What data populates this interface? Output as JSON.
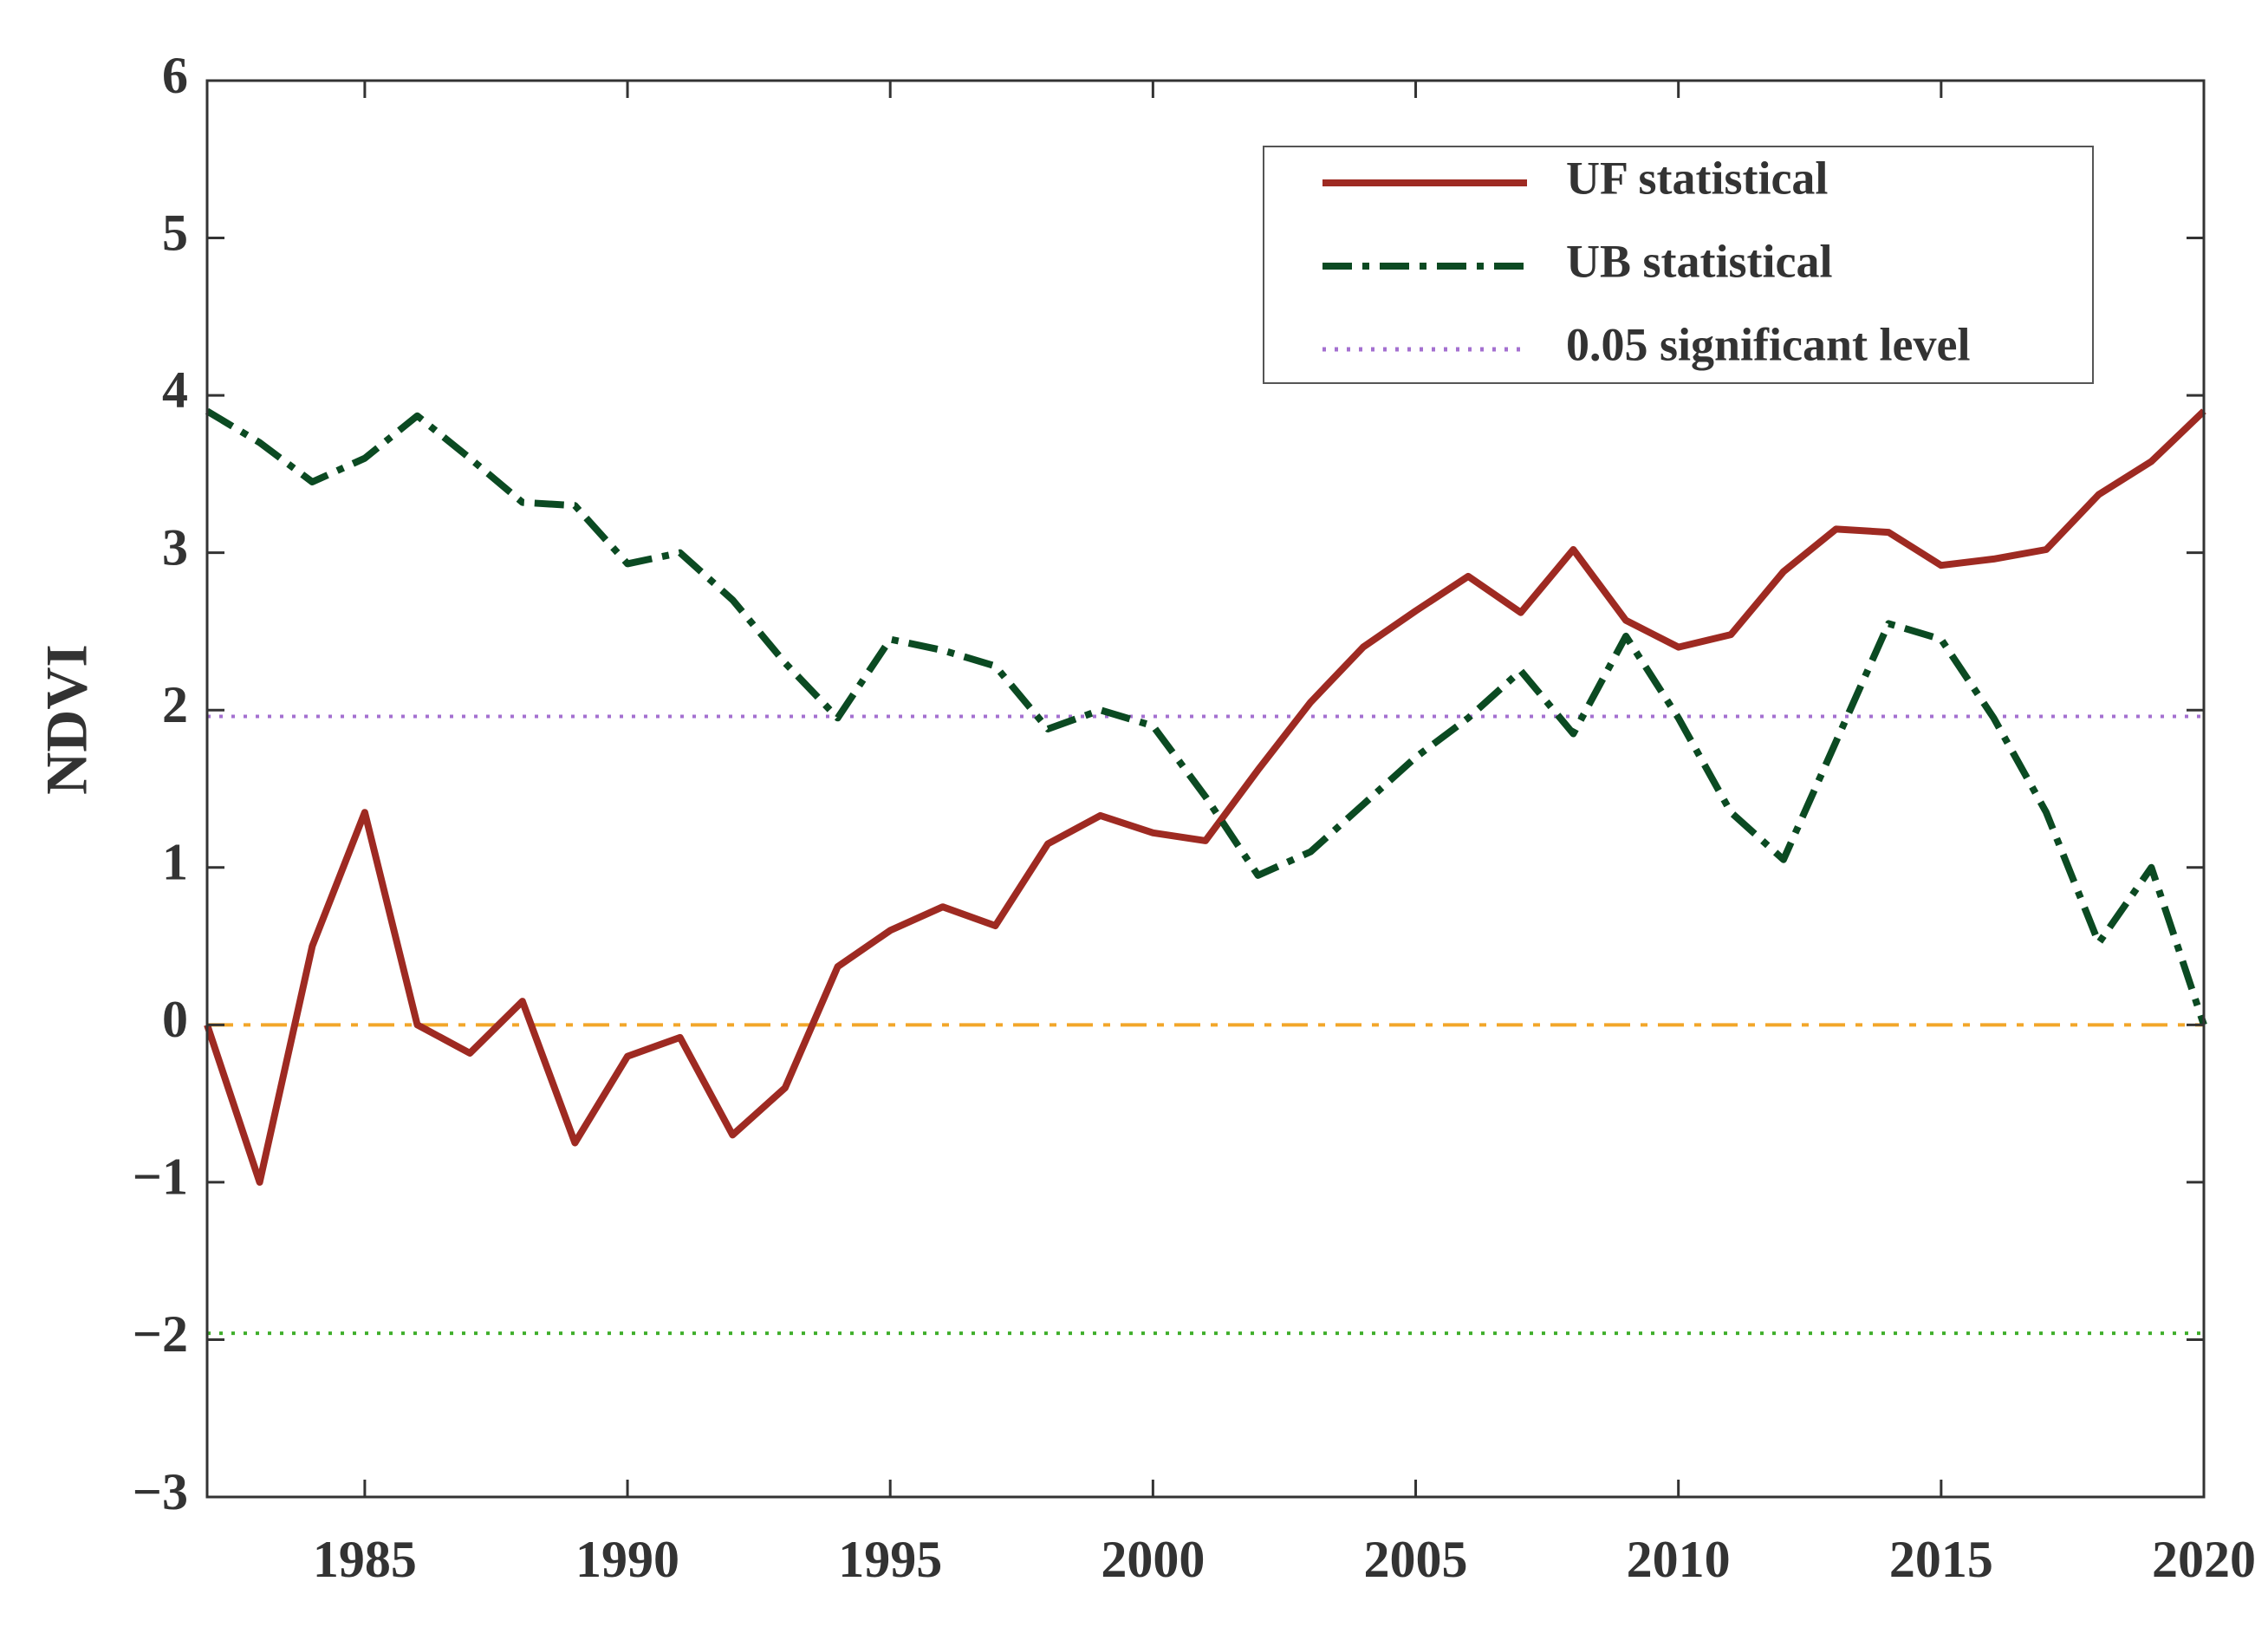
{
  "chart_data": {
    "type": "line",
    "ylabel": "NDVI",
    "x": [
      1982,
      1983,
      1984,
      1985,
      1986,
      1987,
      1988,
      1989,
      1990,
      1991,
      1992,
      1993,
      1994,
      1995,
      1996,
      1997,
      1998,
      1999,
      2000,
      2001,
      2002,
      2003,
      2004,
      2005,
      2006,
      2007,
      2008,
      2009,
      2010,
      2011,
      2012,
      2013,
      2014,
      2015,
      2016,
      2017,
      2018,
      2019,
      2020
    ],
    "series": [
      {
        "name": "UF statistical",
        "color": "#9e2a22",
        "style": "solid",
        "values": [
          0,
          -1.0,
          0.5,
          1.35,
          0.0,
          -0.18,
          0.15,
          -0.75,
          -0.2,
          -0.08,
          -0.7,
          -0.4,
          0.37,
          0.6,
          0.75,
          0.63,
          1.15,
          1.33,
          1.22,
          1.17,
          1.62,
          2.05,
          2.4,
          2.63,
          2.85,
          2.62,
          3.02,
          2.57,
          2.4,
          2.48,
          2.88,
          3.15,
          3.13,
          2.92,
          2.96,
          3.02,
          3.37,
          3.58,
          3.9
        ]
      },
      {
        "name": "UB statistical",
        "color": "#0b4a22",
        "style": "dashdot",
        "values": [
          3.9,
          3.7,
          3.45,
          3.6,
          3.87,
          3.6,
          3.32,
          3.3,
          2.93,
          3.0,
          2.7,
          2.3,
          1.95,
          2.45,
          2.38,
          2.28,
          1.88,
          2.0,
          1.9,
          1.45,
          0.95,
          1.1,
          1.4,
          1.7,
          1.95,
          2.25,
          1.85,
          2.47,
          1.95,
          1.35,
          1.05,
          1.8,
          2.55,
          2.45,
          1.95,
          1.35,
          0.52,
          1.0,
          0.0
        ]
      }
    ],
    "reference_lines": [
      {
        "name": "0.05 significant level",
        "value": 1.96,
        "color": "#a470d0",
        "style": "dotted"
      },
      {
        "value": -1.96,
        "color": "#3fae2a",
        "style": "dotted"
      },
      {
        "value": 0,
        "color": "#f2a62a",
        "style": "dashdot"
      }
    ],
    "xlim": [
      1982,
      2020
    ],
    "xticks": [
      1985,
      1990,
      1995,
      2000,
      2005,
      2010,
      2015,
      2020
    ],
    "ylim": [
      -3,
      6
    ],
    "yticks": [
      {
        "value": -3,
        "label": "−3"
      },
      {
        "value": -2,
        "label": "−2"
      },
      {
        "value": -1,
        "label": "−1"
      },
      0,
      1,
      2,
      3,
      4,
      5,
      6
    ],
    "legend": "upper right"
  }
}
